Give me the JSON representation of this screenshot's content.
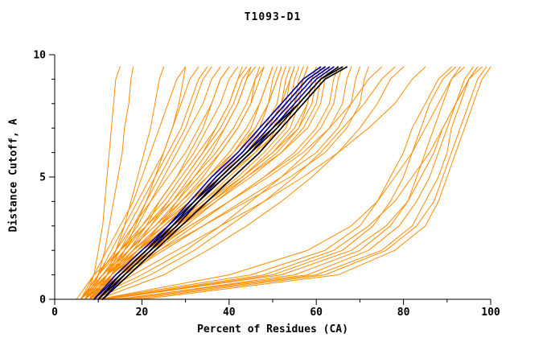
{
  "chart_data": {
    "type": "line",
    "title": "T1093-D1",
    "xlabel": "Percent of Residues (CA)",
    "ylabel": "Distance Cutoff, A",
    "xlim": [
      0,
      100
    ],
    "ylim": [
      0,
      10
    ],
    "x_ticks_major": [
      0,
      20,
      40,
      60,
      80,
      100
    ],
    "x_ticks_minor": [
      10,
      30,
      50,
      70,
      90
    ],
    "y_ticks_major": [
      0,
      5,
      10
    ],
    "y_ticks_minor": [
      1,
      2,
      3,
      4,
      6,
      7,
      8,
      9
    ],
    "grid": false,
    "legend_position": "none",
    "colors": {
      "models": "#ff8c00",
      "selected": "#0000a0",
      "reference": "#000000"
    },
    "y_levels": [
      0,
      1,
      2,
      3,
      4,
      5,
      6,
      7,
      8,
      9,
      9.5
    ],
    "series_groups": [
      {
        "name": "model-curve",
        "color": "#ff8c00",
        "width": 1,
        "series": [
          [
            7,
            9,
            10,
            11,
            11.5,
            12,
            12.5,
            13,
            13.5,
            14,
            15
          ],
          [
            8,
            10,
            11.5,
            12.5,
            13.5,
            14.5,
            15.5,
            16,
            17,
            17.5,
            18
          ],
          [
            9,
            12,
            14,
            16,
            17.5,
            19,
            20.5,
            22,
            23,
            24,
            25
          ],
          [
            10,
            13,
            16,
            18.5,
            21,
            23,
            25,
            27,
            28.5,
            29.5,
            30
          ],
          [
            6,
            9,
            12,
            15,
            18,
            20,
            22,
            24,
            26,
            28,
            30
          ],
          [
            7,
            10,
            13,
            16,
            19,
            22,
            25,
            27,
            29,
            31,
            33
          ],
          [
            6,
            10,
            14,
            17,
            20,
            23,
            26,
            29,
            31,
            33,
            35
          ],
          [
            8,
            12,
            15,
            18,
            21,
            24,
            27,
            30,
            32,
            34,
            36
          ],
          [
            7,
            11,
            15,
            19,
            22,
            25,
            28,
            31,
            34,
            36,
            38
          ],
          [
            6,
            10,
            14,
            18,
            22,
            26,
            30,
            33,
            36,
            38,
            40
          ],
          [
            9,
            13,
            17,
            21,
            24,
            28,
            31,
            34,
            36,
            38,
            40
          ],
          [
            7,
            12,
            16,
            20,
            24,
            28,
            32,
            35,
            38,
            40,
            42
          ],
          [
            8,
            13,
            18,
            22,
            26,
            30,
            34,
            37,
            40,
            42,
            43
          ],
          [
            6,
            11,
            16,
            21,
            26,
            30,
            34,
            38,
            41,
            43,
            45
          ],
          [
            10,
            14,
            19,
            24,
            28,
            32,
            36,
            39,
            42,
            44,
            45
          ],
          [
            7,
            12,
            17,
            22,
            27,
            31,
            35,
            39,
            42,
            44,
            46
          ],
          [
            8,
            13,
            19,
            24,
            29,
            34,
            38,
            42,
            45,
            47,
            48
          ],
          [
            6,
            10,
            15,
            21,
            27,
            32,
            37,
            41,
            44,
            46,
            48
          ],
          [
            9,
            14,
            20,
            26,
            31,
            36,
            41,
            45,
            47,
            49,
            50
          ],
          [
            7,
            12,
            18,
            24,
            30,
            35,
            40,
            44,
            47,
            49,
            50
          ],
          [
            8,
            14,
            20,
            26,
            32,
            38,
            43,
            47,
            49,
            51,
            52
          ],
          [
            6,
            11,
            17,
            23,
            29,
            35,
            41,
            46,
            49,
            51,
            52
          ],
          [
            10,
            15,
            21,
            27,
            33,
            39,
            45,
            49,
            52,
            53,
            54
          ],
          [
            7,
            13,
            19,
            26,
            32,
            38,
            44,
            49,
            52,
            54,
            55
          ],
          [
            9,
            14,
            20,
            27,
            34,
            40,
            46,
            50,
            53,
            54,
            55
          ],
          [
            8,
            13,
            20,
            27,
            34,
            41,
            47,
            51,
            54,
            55,
            56
          ],
          [
            6,
            12,
            18,
            25,
            32,
            39,
            46,
            52,
            55,
            57,
            58
          ],
          [
            10,
            16,
            22,
            29,
            36,
            43,
            49,
            54,
            56,
            57,
            58
          ],
          [
            7,
            13,
            20,
            28,
            36,
            43,
            50,
            55,
            58,
            59,
            60
          ],
          [
            9,
            15,
            22,
            30,
            37,
            44,
            51,
            56,
            58,
            59,
            60
          ],
          [
            8,
            14,
            21,
            29,
            37,
            45,
            52,
            57,
            60,
            61,
            62
          ],
          [
            6,
            12,
            19,
            27,
            36,
            44,
            52,
            58,
            61,
            62,
            63
          ],
          [
            10,
            17,
            24,
            32,
            40,
            48,
            55,
            60,
            63,
            64,
            65
          ],
          [
            8,
            15,
            23,
            31,
            40,
            48,
            56,
            61,
            64,
            65,
            66
          ],
          [
            7,
            14,
            22,
            31,
            40,
            49,
            57,
            63,
            66,
            67,
            68
          ],
          [
            9,
            16,
            25,
            34,
            43,
            52,
            60,
            65,
            68,
            69,
            70
          ],
          [
            8,
            15,
            24,
            34,
            44,
            54,
            62,
            67,
            70,
            71,
            72
          ],
          [
            5,
            9,
            15,
            20,
            25,
            29,
            33,
            37,
            40,
            42,
            44
          ],
          [
            6,
            11,
            17,
            23,
            28,
            33,
            38,
            42,
            45,
            46,
            47
          ],
          [
            8,
            13,
            19,
            25,
            31,
            37,
            42,
            46,
            49,
            50,
            51
          ],
          [
            7,
            12,
            18,
            24,
            31,
            38,
            44,
            48,
            51,
            52,
            53
          ],
          [
            9,
            15,
            21,
            28,
            35,
            42,
            48,
            53,
            55,
            56,
            57
          ],
          [
            6,
            12,
            19,
            27,
            35,
            43,
            50,
            56,
            59,
            60,
            61
          ],
          [
            8,
            20,
            30,
            38,
            45,
            52,
            58,
            63,
            68,
            72,
            75
          ],
          [
            9,
            22,
            32,
            40,
            48,
            55,
            61,
            66,
            71,
            75,
            78
          ],
          [
            10,
            25,
            35,
            44,
            52,
            59,
            65,
            70,
            74,
            77,
            80
          ],
          [
            8,
            18,
            28,
            38,
            48,
            57,
            65,
            72,
            78,
            82,
            85
          ],
          [
            10,
            45,
            62,
            70,
            74,
            77,
            80,
            82,
            85,
            88,
            91
          ],
          [
            12,
            50,
            66,
            73,
            77,
            80,
            82,
            84,
            86,
            89,
            92
          ],
          [
            15,
            55,
            70,
            77,
            81,
            83,
            85,
            87,
            89,
            91,
            93
          ],
          [
            10,
            40,
            58,
            68,
            74,
            78,
            82,
            85,
            88,
            91,
            94
          ],
          [
            14,
            58,
            72,
            79,
            83,
            86,
            88,
            90,
            92,
            94,
            96
          ],
          [
            16,
            60,
            75,
            82,
            85,
            88,
            90,
            91,
            93,
            95,
            97
          ],
          [
            12,
            52,
            68,
            76,
            81,
            84,
            87,
            89,
            92,
            95,
            98
          ],
          [
            18,
            62,
            76,
            83,
            87,
            89,
            91,
            93,
            95,
            97,
            99
          ],
          [
            20,
            65,
            78,
            85,
            88,
            90,
            92,
            94,
            96,
            98,
            100
          ],
          [
            11,
            48,
            64,
            72,
            78,
            82,
            86,
            89,
            92,
            95,
            97
          ]
        ]
      },
      {
        "name": "selected-model-curve",
        "color": "#0000a0",
        "width": 1.6,
        "series": [
          [
            9,
            15,
            21,
            27,
            32,
            37,
            43,
            48,
            53,
            58,
            62
          ],
          [
            10,
            16,
            22,
            27,
            33,
            38,
            44,
            49,
            54,
            59,
            63
          ],
          [
            9,
            14,
            20,
            26,
            31,
            36,
            42,
            47,
            52,
            57,
            61
          ],
          [
            10,
            15,
            21,
            26,
            32,
            37,
            43,
            48,
            53,
            58,
            62
          ],
          [
            11,
            16,
            22,
            28,
            33,
            39,
            45,
            50,
            55,
            60,
            64
          ]
        ]
      },
      {
        "name": "reference-curve",
        "color": "#000000",
        "width": 1.7,
        "series": [
          [
            10,
            16,
            22,
            28,
            33,
            39,
            45,
            51,
            56,
            61,
            66
          ],
          [
            11,
            17,
            23,
            29,
            35,
            41,
            47,
            52,
            57,
            62,
            67
          ],
          [
            10,
            15,
            21,
            27,
            32,
            38,
            44,
            50,
            56,
            61,
            65
          ]
        ]
      }
    ]
  }
}
